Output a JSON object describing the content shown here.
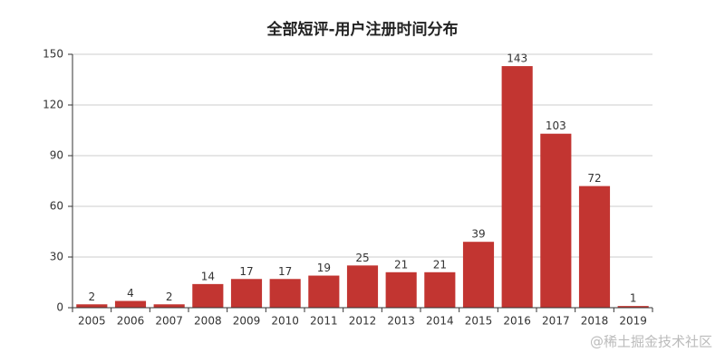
{
  "chart_data": {
    "type": "bar",
    "title": "全部短评-用户注册时间分布",
    "categories": [
      "2005",
      "2006",
      "2007",
      "2008",
      "2009",
      "2010",
      "2011",
      "2012",
      "2013",
      "2014",
      "2015",
      "2016",
      "2017",
      "2018",
      "2019"
    ],
    "values": [
      2,
      4,
      2,
      14,
      17,
      17,
      19,
      25,
      21,
      21,
      39,
      143,
      103,
      72,
      1
    ],
    "color": "#c23531",
    "ylim": [
      0,
      150
    ],
    "yticks": [
      0,
      30,
      60,
      90,
      120,
      150
    ],
    "grid": true,
    "watermark": "@稀土掘金技术社区"
  }
}
